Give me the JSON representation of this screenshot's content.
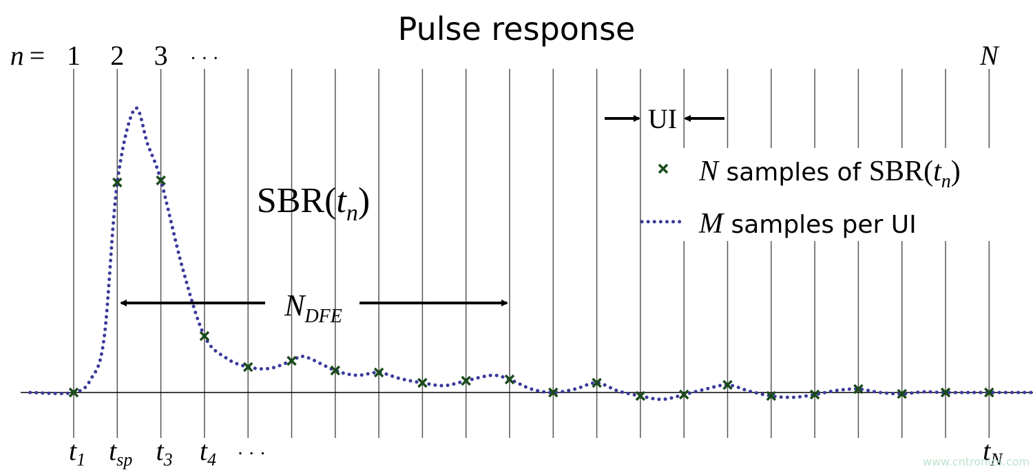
{
  "chart_data": {
    "type": "line",
    "title": "Pulse response",
    "n_label": {
      "var": "n",
      "eq": "="
    },
    "top_labels": [
      "1",
      "2",
      "3",
      "· · ·"
    ],
    "top_last": "N",
    "bottom_labels": [
      {
        "base": "t",
        "sub": "1"
      },
      {
        "base": "t",
        "sub": "sp"
      },
      {
        "base": "t",
        "sub": "3"
      },
      {
        "base": "t",
        "sub": "4"
      },
      {
        "base": "· · ·",
        "sub": ""
      }
    ],
    "bottom_last": {
      "base": "t",
      "sub": "N"
    },
    "sbr_label": {
      "pre": "SBR(",
      "var": "t",
      "sub": "n",
      "post": ")"
    },
    "ndfe_label": {
      "base": "N",
      "sub": "DFE"
    },
    "ui_label": "UI",
    "legend": [
      {
        "var": "N",
        "text": " samples of ",
        "pre": "SBR(",
        "t": "t",
        "sub": "n",
        "post": ")",
        "color": "#1a4a1a"
      },
      {
        "var": "M",
        "text": " samples per UI",
        "color": "#3a3a9a"
      }
    ],
    "samples": {
      "color": "#1a4a1a",
      "values": [
        0,
        3.05,
        3.08,
        0.82,
        0.37,
        0.46,
        0.32,
        0.29,
        0.14,
        0.17,
        0.19,
        0,
        0.14,
        -0.05,
        -0.03,
        0.11,
        -0.05,
        -0.03,
        0.05,
        -0.02,
        0,
        0
      ]
    },
    "curve": {
      "color": "#3a3a9a",
      "x": [
        -1,
        0,
        0.4,
        0.7,
        1,
        1.4,
        1.7,
        2,
        2.5,
        3,
        3.5,
        4,
        4.5,
        5,
        5.3,
        6,
        6.5,
        7,
        7.5,
        8,
        8.5,
        9,
        9.6,
        10,
        10.5,
        11,
        11.5,
        12,
        12.5,
        13,
        13.5,
        14,
        14.5,
        15,
        15.5,
        16,
        16.5,
        17,
        17.5,
        18,
        18.5,
        19,
        19.5,
        20,
        21,
        22
      ],
      "y": [
        0,
        0,
        0.2,
        0.8,
        3.05,
        4.12,
        3.6,
        3.08,
        1.8,
        0.82,
        0.5,
        0.37,
        0.35,
        0.46,
        0.52,
        0.32,
        0.25,
        0.29,
        0.2,
        0.14,
        0.1,
        0.17,
        0.25,
        0.19,
        0.05,
        0,
        0.05,
        0.14,
        0.02,
        -0.05,
        -0.1,
        -0.03,
        0.05,
        0.11,
        0.02,
        -0.05,
        -0.07,
        -0.03,
        0.03,
        0.05,
        0,
        -0.02,
        0.01,
        0,
        0,
        0
      ]
    },
    "watermark": "www.cntronics.com"
  }
}
